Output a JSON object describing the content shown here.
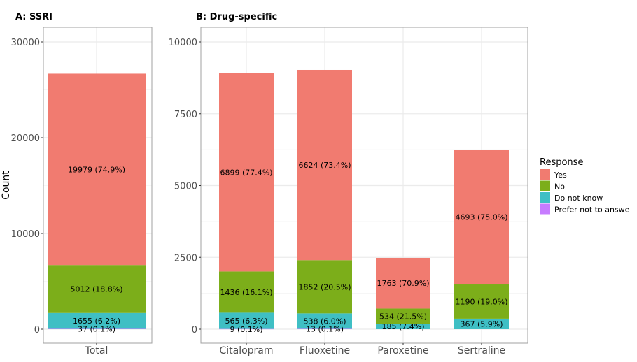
{
  "chart_data": [
    {
      "type": "bar",
      "stacked": true,
      "title": "A: SSRI",
      "xlabel": "",
      "ylabel": "Count",
      "ylim": [
        0,
        30000
      ],
      "yticks": [
        "0",
        "10000",
        "20000",
        "30000"
      ],
      "ytick_values": [
        0,
        10000,
        20000,
        30000
      ],
      "categories": [
        "Total"
      ],
      "grid": true,
      "series": [
        {
          "name": "Prefer not to answe",
          "values": [
            37
          ],
          "labels": [
            "37 (0.1%)"
          ]
        },
        {
          "name": "Do not know",
          "values": [
            1655
          ],
          "labels": [
            "1655 (6.2%)"
          ]
        },
        {
          "name": "No",
          "values": [
            5012
          ],
          "labels": [
            "5012 (18.8%)"
          ]
        },
        {
          "name": "Yes",
          "values": [
            19979
          ],
          "labels": [
            "19979 (74.9%)"
          ]
        }
      ]
    },
    {
      "type": "bar",
      "stacked": true,
      "title": "B: Drug-specific",
      "xlabel": "",
      "ylabel": "",
      "ylim": [
        0,
        10000
      ],
      "yticks": [
        "0",
        "2500",
        "5000",
        "7500",
        "10000"
      ],
      "ytick_values": [
        0,
        2500,
        5000,
        7500,
        10000
      ],
      "categories": [
        "Citalopram",
        "Fluoxetine",
        "Paroxetine",
        "Sertraline"
      ],
      "grid": true,
      "series": [
        {
          "name": "Prefer not to answe",
          "values": [
            9,
            13,
            0,
            0
          ],
          "labels": [
            "9 (0.1%)",
            "13 (0.1%)",
            "",
            ""
          ]
        },
        {
          "name": "Do not know",
          "values": [
            565,
            538,
            185,
            367
          ],
          "labels": [
            "565 (6.3%)",
            "538 (6.0%)",
            "185 (7.4%)",
            "367 (5.9%)"
          ]
        },
        {
          "name": "No",
          "values": [
            1436,
            1852,
            534,
            1190
          ],
          "labels": [
            "1436 (16.1%)",
            "1852 (20.5%)",
            "534 (21.5%)",
            "1190 (19.0%)"
          ]
        },
        {
          "name": "Yes",
          "values": [
            6899,
            6624,
            1763,
            4693
          ],
          "labels": [
            "6899 (77.4%)",
            "6624 (73.4%)",
            "1763 (70.9%)",
            "4693 (75.0%)"
          ]
        }
      ]
    }
  ],
  "legend": {
    "title": "Response",
    "placement": "right",
    "items": [
      {
        "label": "Yes",
        "color": "#F17B70"
      },
      {
        "label": "No",
        "color": "#7CAE1A"
      },
      {
        "label": "Do not know",
        "color": "#3FBFC4"
      },
      {
        "label": "Prefer not to answe",
        "color": "#C77CFF"
      }
    ]
  },
  "colors": {
    "Yes": "#F17B70",
    "No": "#7CAE1A",
    "Do not know": "#3FBFC4",
    "Prefer not to answe": "#C77CFF",
    "grid": "#EBEBEB",
    "panel_border": "#A0A0A0"
  }
}
